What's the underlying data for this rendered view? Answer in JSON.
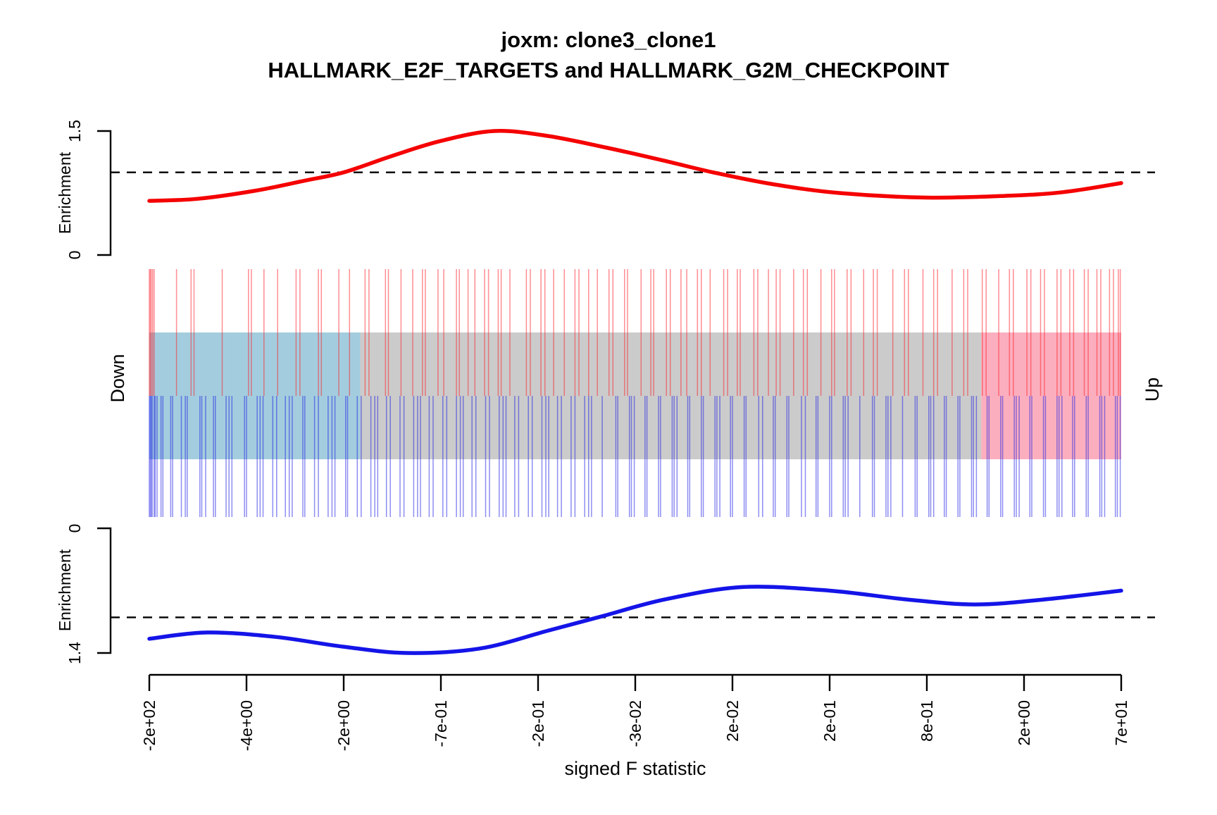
{
  "title": {
    "line1": "joxm: clone3_clone1",
    "line2": "HALLMARK_E2F_TARGETS and HALLMARK_G2M_CHECKPOINT"
  },
  "top_panel": {
    "axis_label": "Enrichment",
    "tick_top": "1.5",
    "tick_bottom": "0"
  },
  "bottom_panel": {
    "axis_label": "Enrichment",
    "tick_top": "0",
    "tick_bottom": "1.4"
  },
  "barcode": {
    "down_label": "Down",
    "up_label": "Up"
  },
  "x_axis": {
    "label": "signed F statistic"
  },
  "colors": {
    "up_curve": "#f50000",
    "down_curve": "#1414e8",
    "up_bar": "rgba(255,30,40,0.5)",
    "down_bar": "rgba(30,30,230,0.5)",
    "band_down": "#a3cdde",
    "band_mid": "#cbcbcb",
    "band_up": "#fbaebe",
    "reference_dash": "#000000"
  },
  "chart_data": {
    "type": "line",
    "subtype": "gsea_barcode_enrichment",
    "title": "joxm: clone3_clone1",
    "subtitle": "HALLMARK_E2F_TARGETS and HALLMARK_G2M_CHECKPOINT",
    "xlabel": "signed F statistic",
    "x_axis": {
      "tick_labels": [
        "-2e+02",
        "-4e+00",
        "-2e+00",
        "-7e-01",
        "-2e-01",
        "-3e-02",
        "2e-02",
        "2e-01",
        "8e-01",
        "2e+00",
        "7e+01"
      ],
      "scale": "gene rank (evenly spaced ticks)"
    },
    "reference_line_enrichment": 1.0,
    "up_curve": {
      "name": "HALLMARK_E2F_TARGETS enrichment (up, red)",
      "ylabel": "Enrichment",
      "ylim": [
        0,
        1.5
      ],
      "points": [
        [
          0,
          0.655
        ],
        [
          0.05,
          0.68
        ],
        [
          0.11,
          0.78
        ],
        [
          0.16,
          0.9
        ],
        [
          0.2,
          1.0
        ],
        [
          0.25,
          1.2
        ],
        [
          0.3,
          1.38
        ],
        [
          0.355,
          1.5
        ],
        [
          0.41,
          1.44
        ],
        [
          0.47,
          1.3
        ],
        [
          0.53,
          1.14
        ],
        [
          0.58,
          1.0
        ],
        [
          0.64,
          0.86
        ],
        [
          0.71,
          0.75
        ],
        [
          0.8,
          0.695
        ],
        [
          0.88,
          0.715
        ],
        [
          0.94,
          0.76
        ],
        [
          1.0,
          0.87
        ]
      ]
    },
    "down_curve": {
      "name": "HALLMARK_G2M_CHECKPOINT enrichment (down, blue)",
      "ylabel": "Enrichment",
      "ylim": [
        0,
        1.4
      ],
      "axis_reversed": true,
      "points": [
        [
          0,
          1.24
        ],
        [
          0.06,
          1.17
        ],
        [
          0.13,
          1.22
        ],
        [
          0.2,
          1.33
        ],
        [
          0.265,
          1.4
        ],
        [
          0.34,
          1.35
        ],
        [
          0.41,
          1.15
        ],
        [
          0.465,
          0.99
        ],
        [
          0.53,
          0.8
        ],
        [
          0.61,
          0.66
        ],
        [
          0.7,
          0.7
        ],
        [
          0.78,
          0.8
        ],
        [
          0.85,
          0.855
        ],
        [
          0.92,
          0.8
        ],
        [
          1.0,
          0.7
        ]
      ]
    },
    "regions": [
      {
        "name": "down",
        "color": "#a3cdde",
        "from": 0.0,
        "to": 0.217
      },
      {
        "name": "mid",
        "color": "#cbcbcb",
        "from": 0.217,
        "to": 0.856
      },
      {
        "name": "up",
        "color": "#fbaebe",
        "from": 0.856,
        "to": 1.0
      }
    ],
    "up_set_bars": [
      0.0,
      0.001,
      0.002,
      0.0035,
      0.005,
      0.028,
      0.043,
      0.046,
      0.075,
      0.102,
      0.105,
      0.118,
      0.132,
      0.151,
      0.155,
      0.174,
      0.177,
      0.195,
      0.206,
      0.222,
      0.226,
      0.243,
      0.246,
      0.259,
      0.271,
      0.281,
      0.284,
      0.297,
      0.303,
      0.316,
      0.319,
      0.328,
      0.335,
      0.345,
      0.349,
      0.359,
      0.362,
      0.371,
      0.388,
      0.392,
      0.403,
      0.407,
      0.416,
      0.427,
      0.438,
      0.442,
      0.452,
      0.461,
      0.473,
      0.477,
      0.489,
      0.492,
      0.506,
      0.516,
      0.519,
      0.532,
      0.536,
      0.547,
      0.553,
      0.564,
      0.568,
      0.577,
      0.591,
      0.595,
      0.605,
      0.608,
      0.622,
      0.626,
      0.637,
      0.645,
      0.649,
      0.663,
      0.673,
      0.677,
      0.691,
      0.702,
      0.705,
      0.718,
      0.722,
      0.735,
      0.745,
      0.749,
      0.765,
      0.777,
      0.781,
      0.796,
      0.807,
      0.811,
      0.826,
      0.838,
      0.842,
      0.857,
      0.861,
      0.874,
      0.885,
      0.889,
      0.903,
      0.907,
      0.917,
      0.921,
      0.934,
      0.938,
      0.947,
      0.951,
      0.962,
      0.966,
      0.975,
      0.979,
      0.988,
      0.992,
      0.997,
      0.999
    ],
    "down_set_bars": [
      0.0,
      0.001,
      0.002,
      0.003,
      0.005,
      0.006,
      0.008,
      0.012,
      0.014,
      0.022,
      0.024,
      0.033,
      0.037,
      0.039,
      0.052,
      0.054,
      0.058,
      0.066,
      0.068,
      0.079,
      0.082,
      0.085,
      0.098,
      0.1,
      0.111,
      0.114,
      0.117,
      0.127,
      0.131,
      0.14,
      0.144,
      0.147,
      0.158,
      0.16,
      0.17,
      0.174,
      0.184,
      0.188,
      0.191,
      0.202,
      0.204,
      0.214,
      0.218,
      0.228,
      0.232,
      0.235,
      0.244,
      0.248,
      0.258,
      0.262,
      0.272,
      0.276,
      0.279,
      0.288,
      0.292,
      0.302,
      0.306,
      0.316,
      0.32,
      0.323,
      0.332,
      0.336,
      0.346,
      0.35,
      0.36,
      0.364,
      0.367,
      0.376,
      0.38,
      0.39,
      0.394,
      0.404,
      0.408,
      0.411,
      0.42,
      0.424,
      0.434,
      0.438,
      0.448,
      0.452,
      0.455,
      0.466,
      0.48,
      0.482,
      0.494,
      0.496,
      0.499,
      0.51,
      0.512,
      0.524,
      0.526,
      0.538,
      0.54,
      0.543,
      0.554,
      0.556,
      0.568,
      0.57,
      0.582,
      0.584,
      0.587,
      0.598,
      0.6,
      0.612,
      0.614,
      0.627,
      0.631,
      0.642,
      0.644,
      0.656,
      0.658,
      0.671,
      0.675,
      0.686,
      0.688,
      0.7,
      0.702,
      0.714,
      0.716,
      0.719,
      0.731,
      0.744,
      0.746,
      0.758,
      0.76,
      0.763,
      0.775,
      0.788,
      0.79,
      0.802,
      0.804,
      0.807,
      0.818,
      0.82,
      0.832,
      0.834,
      0.846,
      0.848,
      0.851,
      0.862,
      0.864,
      0.876,
      0.878,
      0.89,
      0.892,
      0.895,
      0.906,
      0.908,
      0.92,
      0.922,
      0.934,
      0.936,
      0.939,
      0.95,
      0.952,
      0.964,
      0.966,
      0.978,
      0.98,
      0.983,
      0.994,
      0.996,
      0.999
    ]
  }
}
